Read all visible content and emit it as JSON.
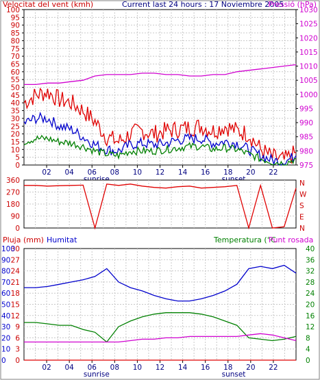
{
  "chart_data": [
    {
      "type": "line",
      "title": "Current last 24 hours : 17 Noviembre 2005",
      "ylabel_left": "Velocitat del vent (kmh)",
      "ylabel_right": "Pressió (hPa)",
      "x_ticks": [
        "02",
        "04",
        "06",
        "08",
        "10",
        "12",
        "14",
        "16",
        "18",
        "20",
        "22"
      ],
      "x_markers": [
        "sunrise",
        "sunset"
      ],
      "ylim_left": [
        0,
        100
      ],
      "ylim_right": [
        975,
        1030
      ],
      "left_ticks": [
        "100",
        "95",
        "90",
        "85",
        "80",
        "75",
        "70",
        "65",
        "60",
        "55",
        "50",
        "45",
        "40",
        "35",
        "30",
        "25",
        "20",
        "15",
        "10",
        "5",
        "0"
      ],
      "right_ticks": [
        "1030",
        "1025",
        "1020",
        "1015",
        "1010",
        "1005",
        "1000",
        "995",
        "990",
        "985",
        "980",
        "975"
      ],
      "grid": true,
      "colors": {
        "red": "#e00000",
        "blue": "#0000cc",
        "green": "#008000",
        "magenta": "#d000d0",
        "axis": "#cc0000",
        "axis_right": "#d000d0"
      },
      "x": [
        0,
        1,
        2,
        3,
        4,
        5,
        6,
        7,
        8,
        9,
        10,
        11,
        12,
        13,
        14,
        15,
        16,
        17,
        18,
        19,
        20,
        21,
        22,
        23
      ],
      "series": [
        {
          "color": "red",
          "values": [
            40,
            45,
            47,
            42,
            40,
            35,
            28,
            18,
            15,
            20,
            22,
            20,
            22,
            23,
            24,
            25,
            22,
            25,
            22,
            20,
            10,
            5,
            3,
            8
          ]
        },
        {
          "color": "blue",
          "values": [
            27,
            30,
            30,
            25,
            23,
            18,
            13,
            10,
            9,
            13,
            14,
            13,
            14,
            16,
            17,
            17,
            14,
            15,
            14,
            10,
            6,
            3,
            2,
            6
          ]
        },
        {
          "color": "green",
          "values": [
            15,
            17,
            17,
            15,
            14,
            12,
            9,
            7,
            6,
            9,
            9,
            9,
            10,
            11,
            12,
            12,
            10,
            11,
            10,
            7,
            4,
            2,
            1,
            4
          ]
        },
        {
          "color": "magenta",
          "values": [
            1003.5,
            1003.5,
            1004,
            1004,
            1004.5,
            1005,
            1006.5,
            1007,
            1007,
            1007,
            1007.5,
            1007.5,
            1007,
            1007,
            1006.5,
            1006.5,
            1007,
            1007,
            1008,
            1008.5,
            1009,
            1009.5,
            1010,
            1010.5
          ]
        }
      ]
    },
    {
      "type": "line",
      "title": "",
      "ylim_left": [
        0,
        360
      ],
      "left_ticks": [
        "360",
        "270",
        "180",
        "90",
        "0"
      ],
      "right_ticks": [
        "N",
        "W",
        "S",
        "E",
        "N"
      ],
      "grid": true,
      "colors": {
        "red": "#e00000",
        "axis": "#cc0000"
      },
      "x": [
        0,
        1,
        2,
        3,
        4,
        5,
        6,
        7,
        8,
        9,
        10,
        11,
        12,
        13,
        14,
        15,
        16,
        17,
        18,
        19,
        20,
        21,
        22,
        23
      ],
      "series": [
        {
          "color": "red",
          "values": [
            320,
            320,
            315,
            318,
            320,
            322,
            0,
            330,
            320,
            330,
            315,
            305,
            300,
            310,
            315,
            300,
            305,
            310,
            320,
            0,
            320,
            0,
            10,
            300
          ]
        }
      ]
    },
    {
      "type": "line",
      "ylabel_left": "Pluja (mm)",
      "ylabel_left2": "Humitat",
      "ylabel_right": "Temperatura (°C",
      "ylabel_right2": "Punt rosada",
      "x_ticks": [
        "02",
        "04",
        "06",
        "08",
        "10",
        "12",
        "14",
        "16",
        "18",
        "20",
        "22"
      ],
      "x_markers": [
        "sunrise",
        "sunset"
      ],
      "ylim_humidity": [
        0,
        100
      ],
      "ylim_rain": [
        0,
        30
      ],
      "ylim_temp": [
        0,
        40
      ],
      "left_ticks_rain": [
        "30",
        "27",
        "24",
        "21",
        "18",
        "15",
        "12",
        "9",
        "6",
        "3",
        "0"
      ],
      "left_ticks_hum": [
        "100",
        "90",
        "80",
        "70",
        "60",
        "50",
        "40",
        "30",
        "20",
        "10",
        "0"
      ],
      "right_ticks": [
        "40",
        "36",
        "32",
        "28",
        "24",
        "20",
        "16",
        "12",
        "8",
        "4",
        "0"
      ],
      "grid": true,
      "colors": {
        "red": "#e00000",
        "blue": "#0000cc",
        "green": "#008000",
        "magenta": "#d000d0",
        "axis": "#cc0000",
        "axis_blue": "#0000cc",
        "axis_green": "#008000",
        "axis_magenta": "#d000d0"
      },
      "x": [
        0,
        1,
        2,
        3,
        4,
        5,
        6,
        7,
        8,
        9,
        10,
        11,
        12,
        13,
        14,
        15,
        16,
        17,
        18,
        19,
        20,
        21,
        22,
        23
      ],
      "series": [
        {
          "name": "Humitat",
          "color": "blue",
          "values": [
            65,
            65,
            66,
            68,
            70,
            72,
            75,
            82,
            70,
            65,
            62,
            58,
            55,
            53,
            53,
            55,
            58,
            62,
            68,
            82,
            84,
            82,
            85,
            78
          ]
        },
        {
          "name": "Temperatura",
          "color": "green",
          "values": [
            13.5,
            13.5,
            13,
            12.5,
            12.5,
            11,
            10,
            6.5,
            12,
            14,
            15.5,
            16.5,
            17,
            17,
            17,
            16.5,
            15.5,
            14,
            12.5,
            8,
            7.5,
            7,
            7.5,
            8.5
          ]
        },
        {
          "name": "Punt rosada",
          "color": "magenta",
          "values": [
            6.5,
            6.5,
            6.5,
            6.5,
            6.5,
            6.5,
            6.5,
            6.5,
            6.5,
            7,
            7.5,
            7.5,
            8,
            8,
            8.5,
            8.5,
            8.5,
            8.5,
            8.5,
            9,
            9.5,
            9,
            8,
            7
          ]
        },
        {
          "name": "Pluja",
          "color": "red",
          "values": [
            0,
            0,
            0,
            0,
            0,
            0,
            0,
            0,
            0,
            0,
            0,
            0,
            0,
            0,
            0,
            0,
            0,
            0,
            0,
            0,
            0,
            0,
            0,
            0
          ]
        }
      ]
    }
  ]
}
